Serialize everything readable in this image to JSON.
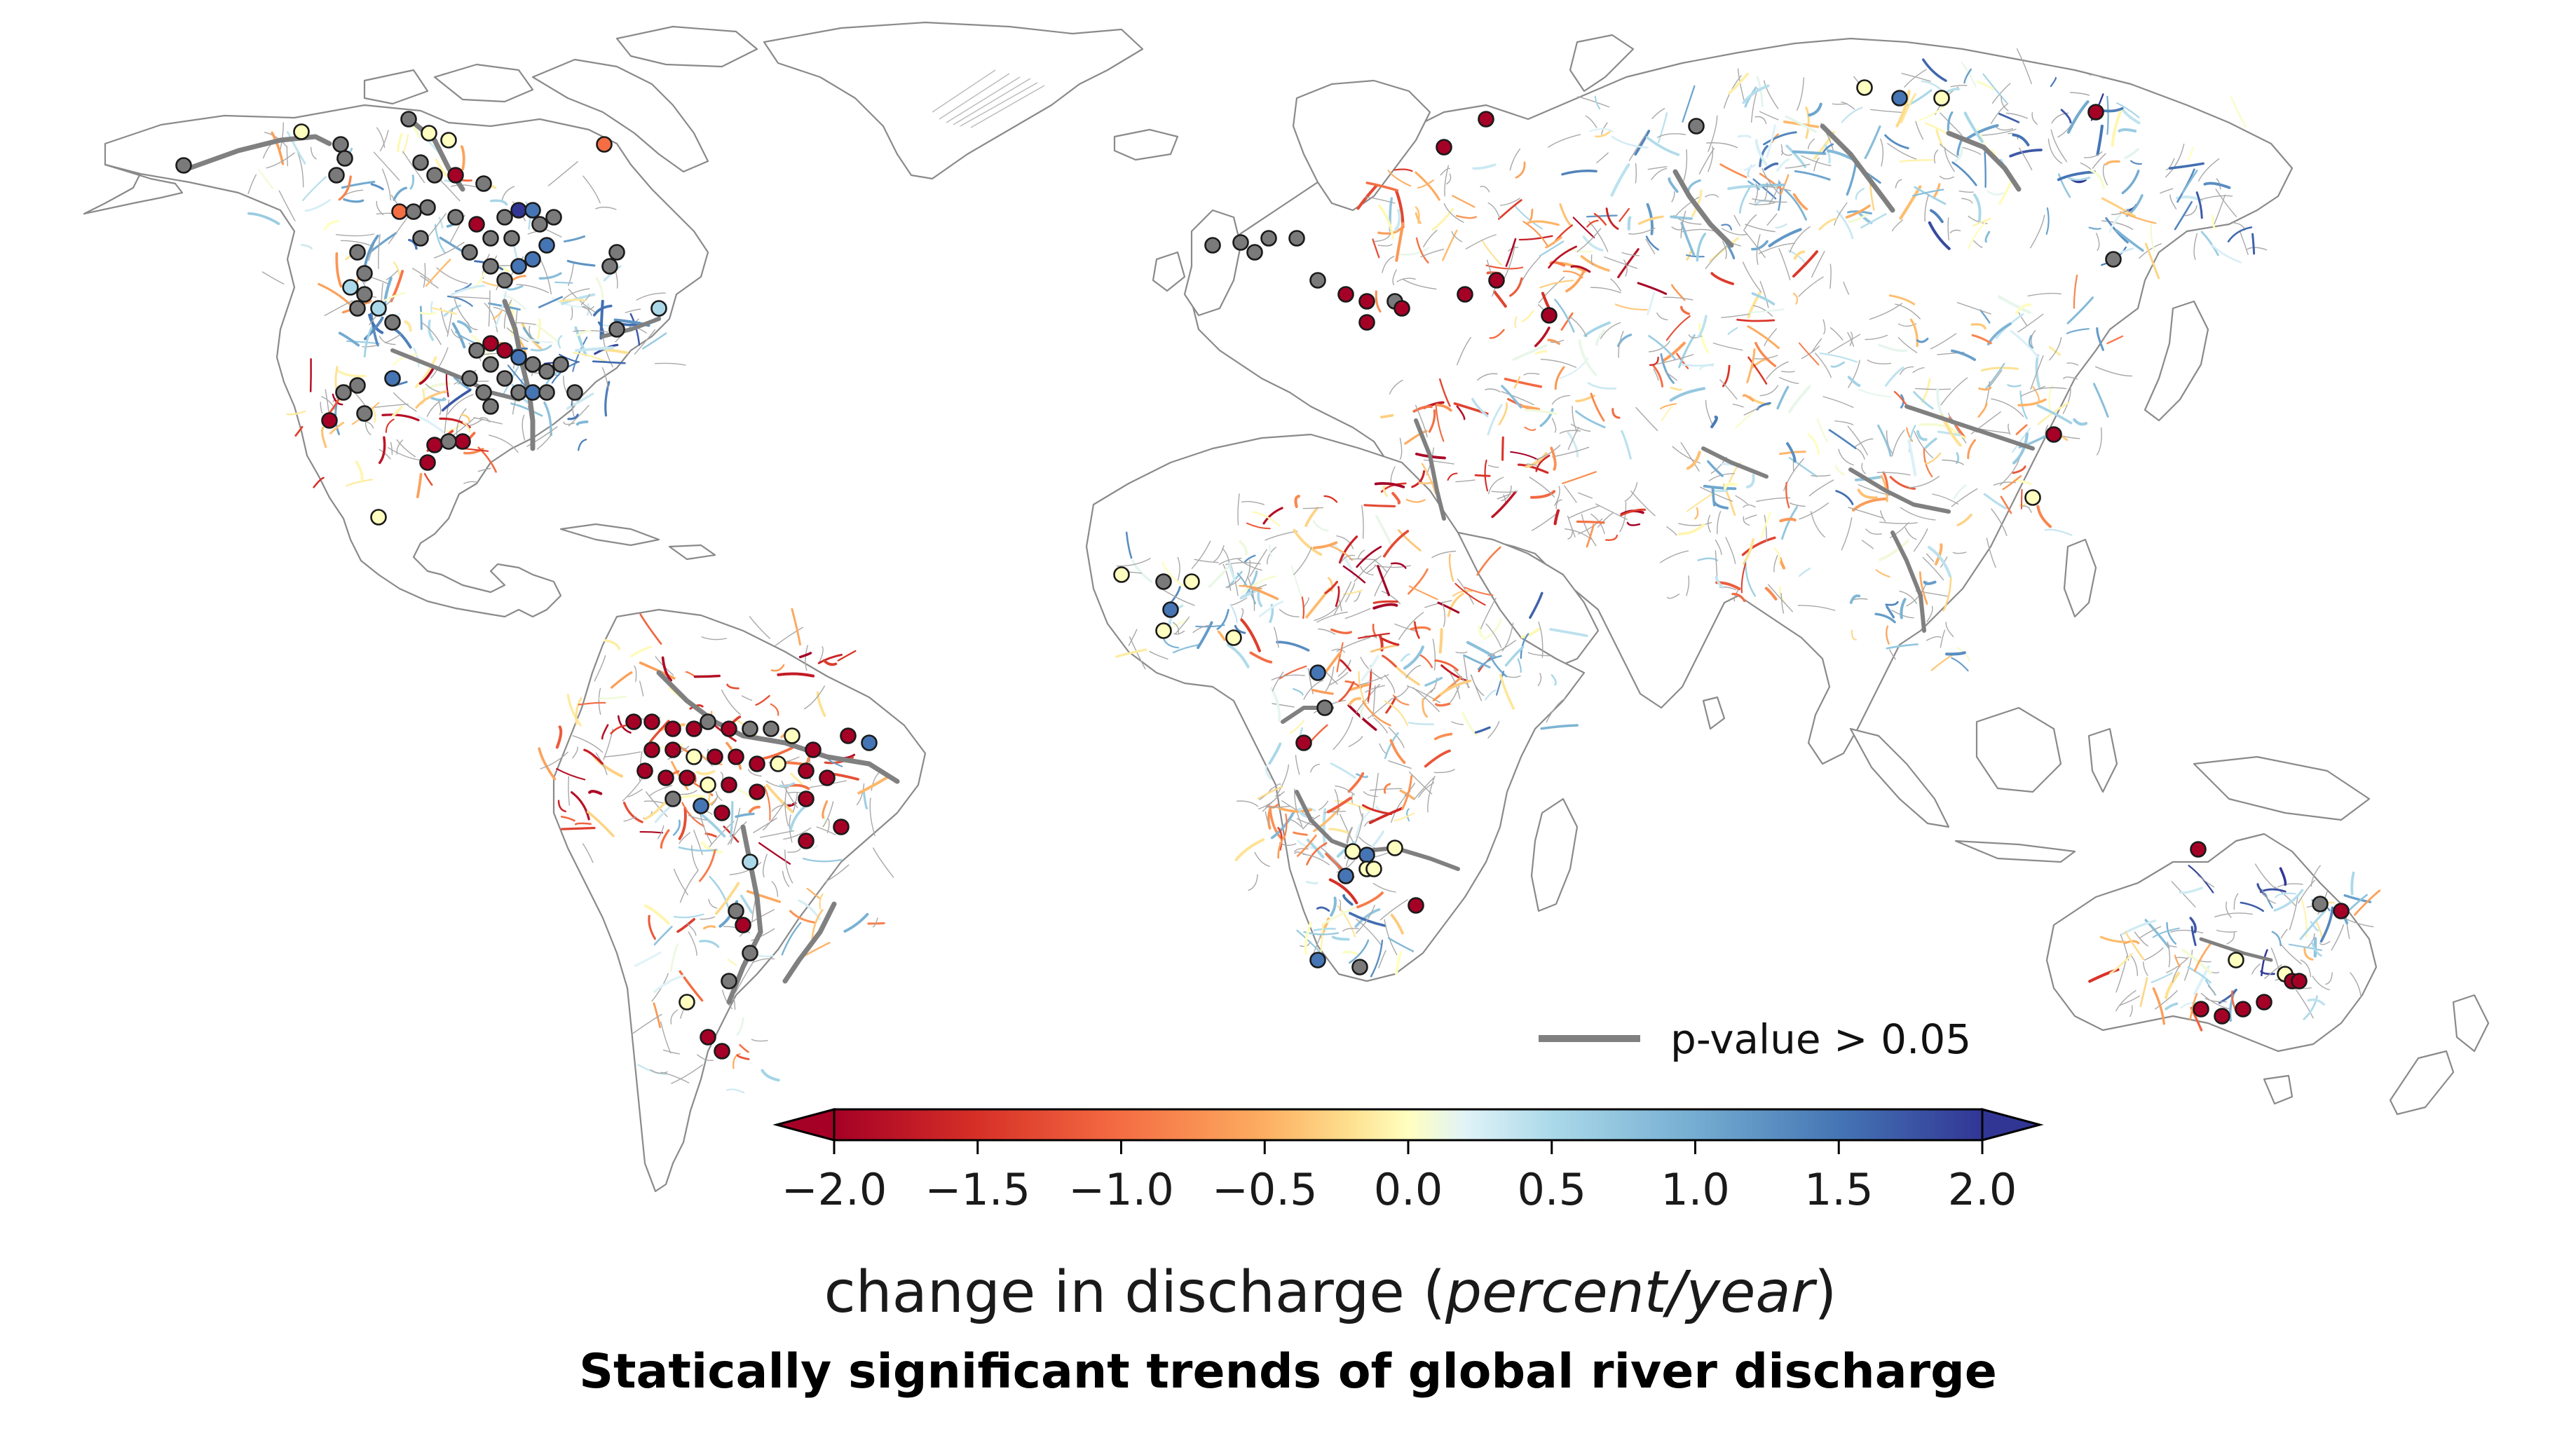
{
  "caption": "Statically significant trends of global river discharge",
  "legend": {
    "line_label": "p-value > 0.05",
    "line_color": "#808080"
  },
  "colorbar": {
    "label_prefix": "change in discharge (",
    "label_unit": "percent/year",
    "label_suffix": ")",
    "vmin": -2.0,
    "vmax": 2.0,
    "extend": "both",
    "colormap": "RdYlBu",
    "ticks": [
      {
        "value": -2.0,
        "label": "−2.0"
      },
      {
        "value": -1.5,
        "label": "−1.5"
      },
      {
        "value": -1.0,
        "label": "−1.0"
      },
      {
        "value": -0.5,
        "label": "−0.5"
      },
      {
        "value": 0.0,
        "label": "0.0"
      },
      {
        "value": 0.5,
        "label": "0.5"
      },
      {
        "value": 1.0,
        "label": "1.0"
      },
      {
        "value": 1.5,
        "label": "1.5"
      },
      {
        "value": 2.0,
        "label": "2.0"
      }
    ],
    "stops": [
      {
        "value": -2.0,
        "color": "#a50026"
      },
      {
        "value": -1.5,
        "color": "#d73027"
      },
      {
        "value": -1.0,
        "color": "#f46d43"
      },
      {
        "value": -0.5,
        "color": "#fdae61"
      },
      {
        "value": -0.2,
        "color": "#fee090"
      },
      {
        "value": 0.0,
        "color": "#ffffbf"
      },
      {
        "value": 0.2,
        "color": "#e0f3f8"
      },
      {
        "value": 0.5,
        "color": "#abd9e9"
      },
      {
        "value": 1.0,
        "color": "#74add1"
      },
      {
        "value": 1.5,
        "color": "#4575b4"
      },
      {
        "value": 2.0,
        "color": "#313695"
      }
    ]
  },
  "station_colors": {
    "not_significant": "#7a7a7a",
    "strong_decrease": "#a50026",
    "decrease": "#d73027",
    "moderate_decrease": "#f46d43",
    "near_zero": "#ffffbf",
    "slight_increase": "#abd9e9",
    "increase": "#4575b4",
    "strong_increase": "#313695"
  },
  "land_color": "#ffffff",
  "coast_color": "#8a8a8a"
}
